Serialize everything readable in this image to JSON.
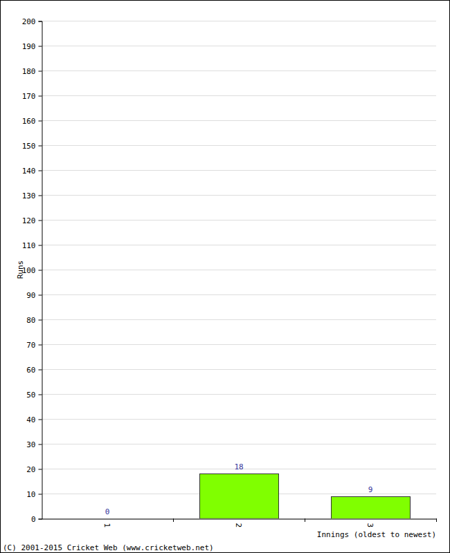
{
  "chart_data": {
    "type": "bar",
    "categories": [
      "1",
      "2",
      "3"
    ],
    "values": [
      0,
      18,
      9
    ],
    "color": "#80ff00",
    "x_label": "Innings (oldest to newest)",
    "y_label": "Runs",
    "ylim": [
      0,
      200
    ],
    "yticks": [
      0,
      10,
      20,
      30,
      40,
      50,
      60,
      70,
      80,
      90,
      100,
      110,
      120,
      130,
      140,
      150,
      160,
      170,
      180,
      190,
      200
    ],
    "grid": true,
    "data_labels": true,
    "annotations": [
      "(C) 2001-2015 Cricket Web (www.cricketweb.net)"
    ]
  }
}
